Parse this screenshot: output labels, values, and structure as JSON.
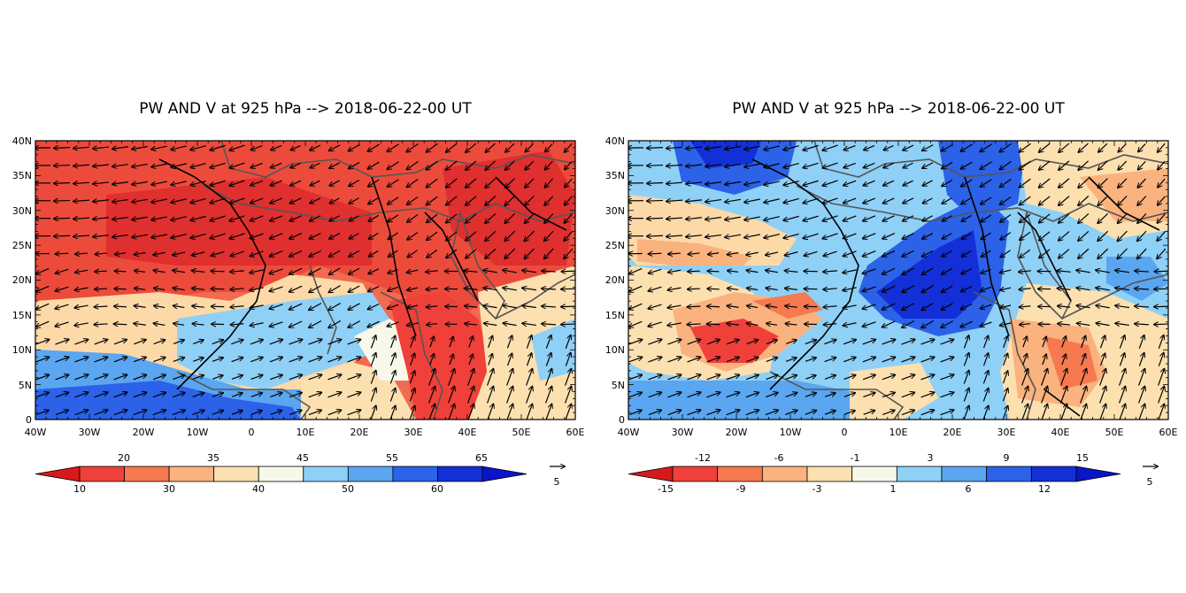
{
  "panels": [
    {
      "id": "left",
      "title": "PW AND V at 925 hPa  --> 2018-06-22-00 UT",
      "lat_labels": [
        "40N",
        "35N",
        "30N",
        "25N",
        "20N",
        "15N",
        "10N",
        "5N",
        "0"
      ],
      "lon_labels": [
        "40W",
        "30W",
        "20W",
        "10W",
        "0",
        "10E",
        "20E",
        "30E",
        "40E",
        "50E",
        "60E"
      ],
      "colorbar": {
        "colors": [
          "#d7191c",
          "#f0403a",
          "#f6794f",
          "#fab27e",
          "#fde0b0",
          "#f7f8ea",
          "#8fd0f7",
          "#5aa6f0",
          "#2c62e8",
          "#1330d8",
          "#0a14c8"
        ],
        "labels_top": [
          "20",
          "35",
          "45",
          "55",
          "65"
        ],
        "labels_bottom": [
          "10",
          "30",
          "40",
          "50",
          "60"
        ]
      },
      "ref_vector": "5"
    },
    {
      "id": "right",
      "title": "PW AND V at 925 hPa  --> 2018-06-22-00 UT",
      "lat_labels": [
        "40N",
        "35N",
        "30N",
        "25N",
        "20N",
        "15N",
        "10N",
        "5N",
        "0"
      ],
      "lon_labels": [
        "40W",
        "30W",
        "20W",
        "10W",
        "0",
        "10E",
        "20E",
        "30E",
        "40E",
        "50E",
        "60E"
      ],
      "colorbar": {
        "colors": [
          "#d7191c",
          "#f0403a",
          "#f6794f",
          "#fab27e",
          "#fde0b0",
          "#f7f8ea",
          "#8fd0f7",
          "#5aa6f0",
          "#2c62e8",
          "#1330d8",
          "#0a14c8"
        ],
        "labels_top": [
          "-12",
          "-6",
          "-1",
          "3",
          "9",
          "15"
        ],
        "labels_bottom": [
          "-15",
          "-9",
          "-3",
          "1",
          "6",
          "12"
        ]
      },
      "ref_vector": "5"
    }
  ]
}
